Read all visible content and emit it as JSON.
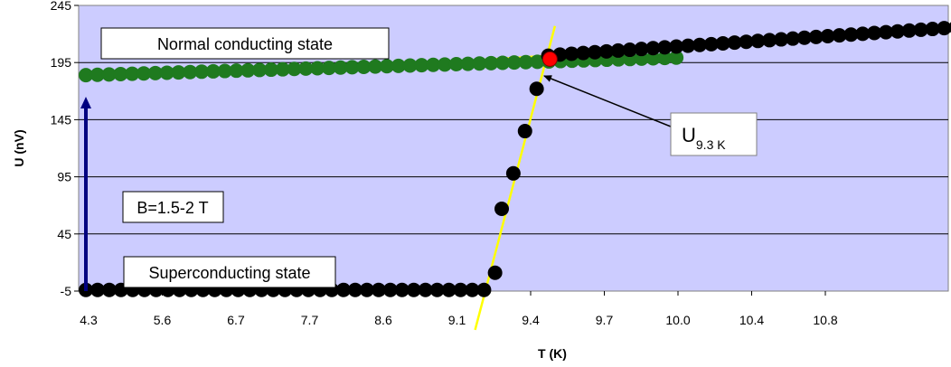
{
  "chart_data": {
    "type": "scatter",
    "xlabel": "T (K)",
    "ylabel": "U (nV)",
    "ylim": [
      -5,
      245
    ],
    "yticks": [
      -5,
      45,
      95,
      145,
      195,
      245
    ],
    "xtick_labels": [
      "4.3",
      "5.6",
      "6.7",
      "7.7",
      "8.6",
      "9.1",
      "9.4",
      "9.7",
      "10.0",
      "10.4",
      "10.8"
    ],
    "grid": "horizontal",
    "plot_background": "#ccccff",
    "series": [
      {
        "color": "#1f7a1f",
        "x_index": [
          0,
          0.348,
          0.696,
          1.044,
          1.392,
          1.74,
          2.088,
          2.436,
          2.784,
          3.132,
          3.48,
          3.828,
          4.176,
          4.524,
          4.872,
          5.22,
          5.568,
          5.916,
          6.264,
          6.612,
          6.96,
          7.308,
          7.656,
          8.004,
          8.352,
          8.7,
          9.048,
          9.396,
          9.744,
          10.092,
          10.44,
          10.788,
          11.136,
          11.484,
          11.832,
          12.18,
          12.528,
          12.876,
          13.224,
          13.572,
          13.92,
          14.268,
          14.616,
          14.964,
          15.312,
          15.66,
          16.008,
          16.356,
          16.704,
          17.052,
          17.4,
          17.748
        ],
        "y": [
          184,
          184.3,
          184.6,
          184.9,
          185.2,
          185.5,
          185.8,
          186.1,
          186.4,
          186.7,
          187,
          187.3,
          187.6,
          187.9,
          188.2,
          188.5,
          188.8,
          189.1,
          189.4,
          189.7,
          190,
          190.3,
          190.6,
          190.9,
          191.2,
          191.5,
          191.8,
          192.1,
          192.4,
          192.7,
          193,
          193.3,
          193.6,
          193.9,
          194.2,
          194.5,
          194.8,
          195.1,
          195.4,
          195.7,
          196,
          196.3,
          196.6,
          196.9,
          197.2,
          197.5,
          197.8,
          198.1,
          198.4,
          198.7,
          199,
          199.3
        ]
      },
      {
        "color": "#000000",
        "x_index": [
          0,
          0.352,
          0.704,
          1.056,
          1.408,
          1.76,
          2.112,
          2.464,
          2.816,
          3.168,
          3.52,
          3.872,
          4.224,
          4.576,
          4.928,
          5.28,
          5.632,
          5.984,
          6.336,
          6.688,
          7.04,
          7.392,
          7.744,
          8.096,
          8.448,
          8.8,
          9.152,
          9.504,
          9.856,
          10.208,
          10.56,
          10.912,
          11.264,
          11.616,
          11.968
        ],
        "y": [
          -4,
          -4,
          -4,
          -4,
          -4,
          -4,
          -4,
          -4,
          -4,
          -4,
          -4,
          -4,
          -4,
          -4,
          -4,
          -4,
          -4,
          -4,
          -4,
          -4,
          -4,
          -4,
          -4,
          -4,
          -4,
          -4,
          -4,
          -4,
          -4,
          -4,
          -4,
          -4,
          -4,
          -4,
          -4
        ]
      },
      {
        "color": "#000000",
        "x_index": [
          12.3,
          12.5,
          12.85,
          13.2,
          13.55,
          13.9
        ],
        "y": [
          11,
          67,
          98,
          135,
          172,
          201
        ]
      },
      {
        "color": "#000000",
        "x_index": [
          14.25,
          14.6,
          14.95,
          15.3,
          15.65,
          16,
          16.35,
          16.7,
          17.05,
          17.4,
          17.75,
          18.1,
          18.45,
          18.8,
          19.15,
          19.5,
          19.85,
          20.2,
          20.55,
          20.9,
          21.25,
          21.6,
          21.95,
          22.3,
          22.65,
          23,
          23.35,
          23.7,
          24.05,
          24.4,
          24.75,
          25.1,
          25.45,
          25.8,
          26.15
        ],
        "y": [
          202,
          202.7,
          203.4,
          204.1,
          204.8,
          205.5,
          206.2,
          206.9,
          207.6,
          208.3,
          209,
          209.7,
          210.4,
          211.1,
          211.8,
          212.5,
          213.2,
          213.9,
          214.6,
          215.3,
          216,
          216.7,
          217.4,
          218.1,
          218.8,
          219.5,
          220.2,
          220.9,
          221.6,
          222.3,
          223,
          223.7,
          224.4,
          225.1,
          225.8
        ]
      }
    ],
    "fit_lines": [
      {
        "color": "#ffff00",
        "x_index": [
          11.7,
          14.1
        ],
        "y": [
          -39,
          227
        ]
      },
      {
        "color": "#ffff00",
        "x_index": [
          11.2,
          26.3
        ],
        "y": [
          196,
          224
        ]
      }
    ],
    "highlight_point": {
      "color": "#ff0000",
      "x_index": 13.95,
      "y": 198
    },
    "annotations": {
      "normal": "Normal conducting state",
      "super": "Superconducting state",
      "field": "B=1.5-2 T",
      "u_main": "U",
      "u_sub": "9.3 K"
    },
    "field_arrow": {
      "color": "#000080",
      "x_index": 0,
      "y_from": -4,
      "y_to": 184
    }
  }
}
